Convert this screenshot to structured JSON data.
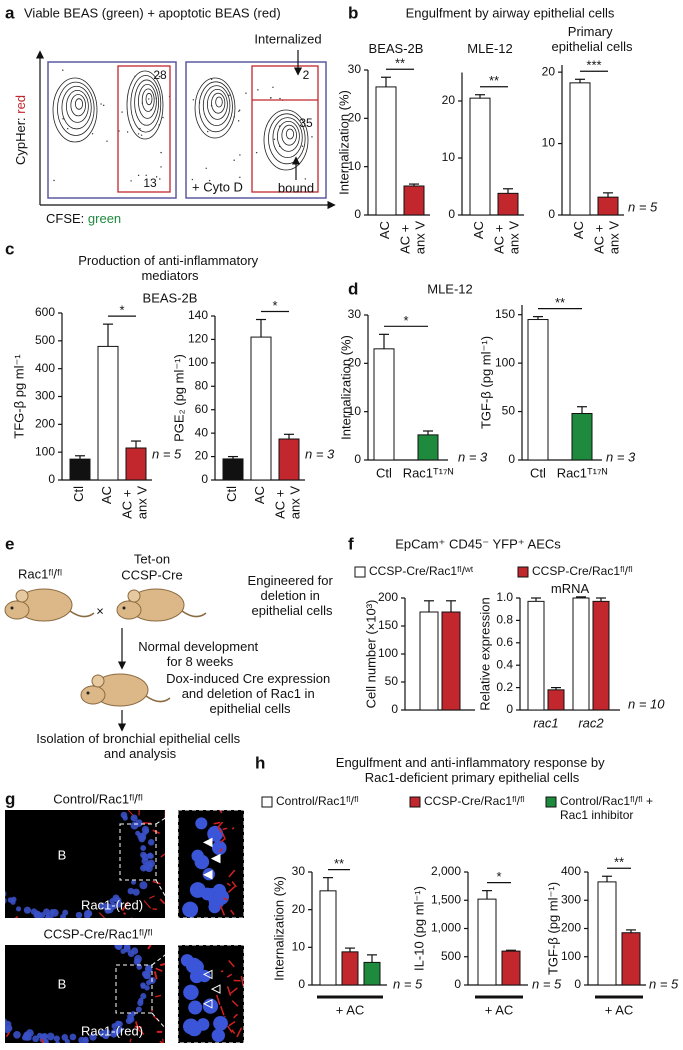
{
  "panels": {
    "a": {
      "letter": "a",
      "title": "Viable BEAS (green) + apoptotic BEAS (red)",
      "y_label": [
        "CypHer: ",
        "red"
      ],
      "x_label": [
        "CFSE: ",
        "green"
      ],
      "gate_values": [
        28,
        13,
        2,
        35
      ],
      "annotations": [
        "Internalized",
        "+ Cyto D",
        "bound"
      ]
    },
    "b": {
      "letter": "b",
      "title": "Engulfment by airway epithelial cells"
    },
    "c": {
      "letter": "c",
      "title": "Production of anti-inflammatory mediators",
      "subtitle": "BEAS-2B"
    },
    "d": {
      "letter": "d",
      "title": "MLE-12"
    },
    "e": {
      "letter": "e",
      "mouse_1": "Rac1ᶠˡ/ᶠˡ",
      "mouse_2": [
        "Tet-on",
        "CCSP-Cre"
      ],
      "cross": "×",
      "note": "Engineered for deletion in epithelial cells",
      "steps": [
        "Normal development for 8 weeks",
        "Dox-induced Cre expression and deletion of Rac1 in epithelial cells",
        "Isolation of bronchial epithelial cells and analysis"
      ]
    },
    "f": {
      "letter": "f",
      "title": "EpCam⁺ CD45⁻ YFP⁺ AECs"
    },
    "g": {
      "letter": "g",
      "images": [
        {
          "caption": "Control/Rac1ᶠˡ/ᶠˡ",
          "region": "B",
          "stain": "Rac1-(red)"
        },
        {
          "caption": "CCSP-Cre/Rac1ᶠˡ/ᶠˡ",
          "region": "B",
          "stain": "Rac1-(red)"
        }
      ]
    },
    "h": {
      "letter": "h",
      "title": "Engulfment and anti-inflammatory response by Rac1-deficient primary epithelial cells"
    }
  },
  "chart_data": [
    {
      "type": "bar",
      "title": "BEAS-2B",
      "y_label": "Internalization (%)",
      "categories": [
        "AC",
        "AC + anx V"
      ],
      "values": [
        26.5,
        6.0
      ],
      "errors": [
        2.0,
        0.4
      ],
      "colors": [
        "#ffffff",
        "#c1272d"
      ],
      "ylim": [
        0,
        30
      ],
      "yticks": [
        0,
        10,
        20,
        30
      ],
      "significance": "**"
    },
    {
      "type": "bar",
      "title": "MLE-12",
      "categories": [
        "AC",
        "AC + anx V"
      ],
      "values": [
        20.5,
        3.8
      ],
      "errors": [
        0.6,
        0.8
      ],
      "colors": [
        "#ffffff",
        "#c1272d"
      ],
      "ylim": [
        0,
        25
      ],
      "yticks": [
        0,
        10,
        20
      ],
      "significance": "**"
    },
    {
      "type": "bar",
      "title": "Primary epithelial cells",
      "categories": [
        "AC",
        "AC + anx V"
      ],
      "values": [
        18.5,
        2.5
      ],
      "errors": [
        0.5,
        0.6
      ],
      "colors": [
        "#ffffff",
        "#c1272d"
      ],
      "ylim": [
        0,
        21
      ],
      "yticks": [
        0,
        10,
        20
      ],
      "significance": "***",
      "note": "n = 5"
    },
    {
      "type": "bar",
      "y_label": "TFG-β pg ml⁻¹",
      "categories": [
        "Ctl",
        "AC",
        "AC + anx V"
      ],
      "values": [
        75,
        480,
        115
      ],
      "errors": [
        12,
        80,
        25
      ],
      "colors": [
        "#111111",
        "#ffffff",
        "#c1272d"
      ],
      "ylim": [
        0,
        600
      ],
      "yticks": [
        0,
        100,
        200,
        300,
        400,
        500,
        600
      ],
      "significance": "*",
      "note": "n = 5"
    },
    {
      "type": "bar",
      "y_label": "PGE₂ (pg ml⁻¹)",
      "categories": [
        "Ctl",
        "AC",
        "AC + anx V"
      ],
      "values": [
        18,
        122,
        35
      ],
      "errors": [
        2,
        15,
        4
      ],
      "colors": [
        "#111111",
        "#ffffff",
        "#c1272d"
      ],
      "ylim": [
        0,
        140
      ],
      "yticks": [
        0,
        20,
        40,
        60,
        80,
        100,
        120,
        140
      ],
      "significance": "*",
      "note": "n = 3"
    },
    {
      "type": "bar",
      "y_label": "Internalization (%)",
      "categories": [
        "Ctl",
        "Rac1ᵀ¹⁷ᴺ"
      ],
      "values": [
        23,
        5.2
      ],
      "errors": [
        3,
        0.8
      ],
      "colors": [
        "#ffffff",
        "#1e8a3e"
      ],
      "ylim": [
        0,
        30
      ],
      "yticks": [
        0,
        10,
        20,
        30
      ],
      "significance": "*",
      "note": "n = 3"
    },
    {
      "type": "bar",
      "y_label": "TGF-β (pg ml⁻¹)",
      "categories": [
        "Ctl",
        "Rac1ᵀ¹⁷ᴺ"
      ],
      "values": [
        145,
        48
      ],
      "errors": [
        3,
        7
      ],
      "colors": [
        "#ffffff",
        "#1e8a3e"
      ],
      "ylim": [
        0,
        160
      ],
      "yticks": [
        0,
        50,
        100,
        150
      ],
      "significance": "**",
      "note": "n = 3"
    },
    {
      "type": "bar",
      "y_label": "Cell number (×10³)",
      "categories": [
        null
      ],
      "series": [
        {
          "name": "CCSP-Cre/Rac1ᶠˡ/ʷᵗ",
          "color": "#ffffff",
          "values": [
            175
          ],
          "errors": [
            20
          ]
        },
        {
          "name": "CCSP-Cre/Rac1ᶠˡ/ᶠˡ",
          "color": "#c1272d",
          "values": [
            175
          ],
          "errors": [
            20
          ]
        }
      ],
      "ylim": [
        0,
        200
      ],
      "yticks": [
        0,
        50,
        100,
        150,
        200
      ]
    },
    {
      "type": "bar",
      "title": "mRNA",
      "y_label": "Relative expression",
      "categories": [
        "rac1",
        "rac2"
      ],
      "series": [
        {
          "color": "#ffffff",
          "values": [
            0.97,
            1.0
          ],
          "errors": [
            0.03,
            0.01
          ]
        },
        {
          "color": "#c1272d",
          "values": [
            0.18,
            0.97
          ],
          "errors": [
            0.02,
            0.03
          ]
        }
      ],
      "ylim": [
        0,
        1
      ],
      "yticks": [
        0,
        0.2,
        0.4,
        0.6,
        0.8,
        {
          "value": 1,
          "label": "1.0"
        }
      ],
      "note": "n = 10"
    },
    {
      "type": "bar",
      "y_label": "Internalization (%)",
      "categories": [
        "+ AC"
      ],
      "series": [
        {
          "name": "Control/Rac1ᶠˡ/ᶠˡ",
          "color": "#ffffff",
          "values": [
            25
          ],
          "errors": [
            3.5
          ]
        },
        {
          "name": "CCSP-Cre/Rac1ᶠˡ/ᶠˡ",
          "color": "#c1272d",
          "values": [
            8.8
          ],
          "errors": [
            1
          ]
        },
        {
          "name": "Control/Rac1ᶠˡ/ᶠˡ + Rac1 inhibitor",
          "color": "#1e8a3e",
          "values": [
            6
          ],
          "errors": [
            2
          ]
        }
      ],
      "ylim": [
        0,
        30
      ],
      "yticks": [
        0,
        10,
        20,
        30
      ],
      "significance": "**",
      "note": "n = 5"
    },
    {
      "type": "bar",
      "y_label": "IL-10 (pg ml⁻¹)",
      "categories": [
        "+ AC"
      ],
      "series": [
        {
          "color": "#ffffff",
          "values": [
            1520
          ],
          "errors": [
            150
          ]
        },
        {
          "color": "#c1272d",
          "values": [
            600
          ],
          "errors": [
            15
          ]
        }
      ],
      "ylim": [
        0,
        2000
      ],
      "yticks": [
        0,
        500,
        {
          "value": 1000,
          "label": "1,000"
        },
        {
          "value": 1500,
          "label": "1,500"
        },
        {
          "value": 2000,
          "label": "2,000"
        }
      ],
      "significance": "*",
      "note": "n = 5"
    },
    {
      "type": "bar",
      "y_label": "TGF-β (pg ml⁻¹)",
      "categories": [
        "+ AC"
      ],
      "series": [
        {
          "color": "#ffffff",
          "values": [
            365
          ],
          "errors": [
            20
          ]
        },
        {
          "color": "#c1272d",
          "values": [
            185
          ],
          "errors": [
            10
          ]
        }
      ],
      "ylim": [
        0,
        400
      ],
      "yticks": [
        0,
        100,
        200,
        300,
        400
      ],
      "significance": "**",
      "note": "n = 5"
    }
  ]
}
